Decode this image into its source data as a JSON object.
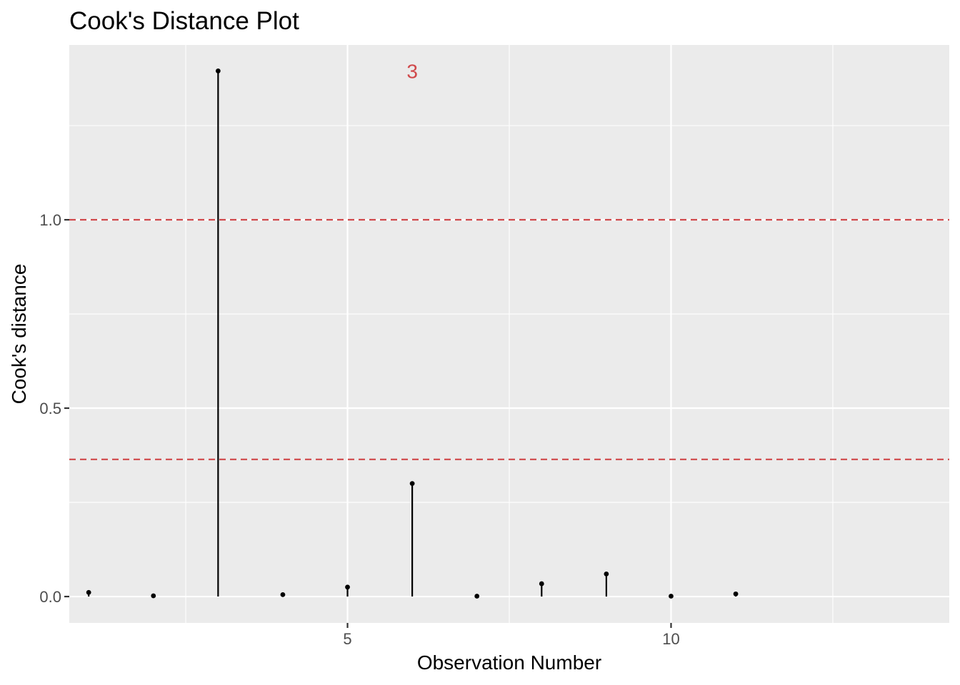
{
  "chart_data": {
    "type": "scatter",
    "title": "Cook's Distance Plot",
    "xlabel": "Observation Number",
    "ylabel": "Cook's distance",
    "xlim": [
      0.7,
      14.3
    ],
    "ylim": [
      -0.07,
      1.464
    ],
    "x_ticks": [
      5,
      10
    ],
    "x_tick_labels": [
      "5",
      "10"
    ],
    "y_ticks": [
      0.0,
      0.5,
      1.0
    ],
    "y_tick_labels": [
      "0.0",
      "0.5",
      "1.0"
    ],
    "grid": true,
    "background_color": "#ebebeb",
    "series": [
      {
        "style": "lollipop",
        "color": "#000000",
        "x": [
          1,
          2,
          3,
          4,
          5,
          6,
          7,
          8,
          9,
          10,
          11
        ],
        "y": [
          0.011,
          0.002,
          1.395,
          0.005,
          0.025,
          0.3,
          0.001,
          0.034,
          0.06,
          0.001,
          0.007
        ]
      }
    ],
    "reference_lines": [
      {
        "orientation": "horizontal",
        "y": 1.0,
        "style": "dashed",
        "color": "#d0494b"
      },
      {
        "orientation": "horizontal",
        "y": 0.364,
        "style": "dashed",
        "color": "#d0494b"
      }
    ],
    "annotations": [
      {
        "text": "3",
        "x": 6,
        "y": 1.395,
        "color": "#d0494b"
      }
    ]
  }
}
